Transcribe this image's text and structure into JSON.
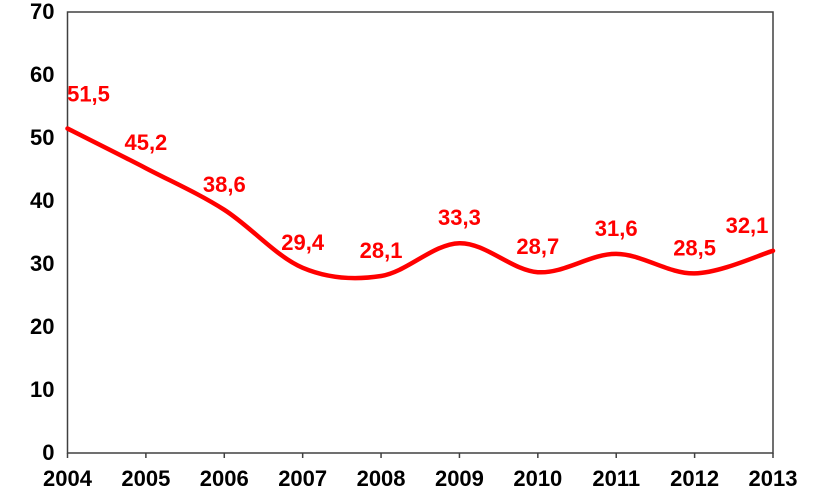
{
  "chart_data": {
    "type": "line",
    "title": "",
    "xlabel": "",
    "ylabel": "",
    "categories": [
      "2004",
      "2005",
      "2006",
      "2007",
      "2008",
      "2009",
      "2010",
      "2011",
      "2012",
      "2013"
    ],
    "series": [
      {
        "name": "series-1",
        "values": [
          51.5,
          45.2,
          38.6,
          29.4,
          28.1,
          33.3,
          28.7,
          31.6,
          28.5,
          32.1
        ],
        "data_labels": [
          "51,5",
          "45,2",
          "38,6",
          "29,4",
          "28,1",
          "33,3",
          "28,7",
          "31,6",
          "28,5",
          "32,1"
        ],
        "line_color": "#ff0000",
        "label_color": "#ff0000",
        "smoothed": true
      }
    ],
    "ylim": [
      0,
      70
    ],
    "y_ticks": [
      0,
      10,
      20,
      30,
      40,
      50,
      60,
      70
    ],
    "grid": false,
    "legend": "none",
    "plot_border": true,
    "axis_line_color": "#404040",
    "axis_text_color": "#000000",
    "background_color": "#ffffff",
    "decimal_separator": ","
  }
}
